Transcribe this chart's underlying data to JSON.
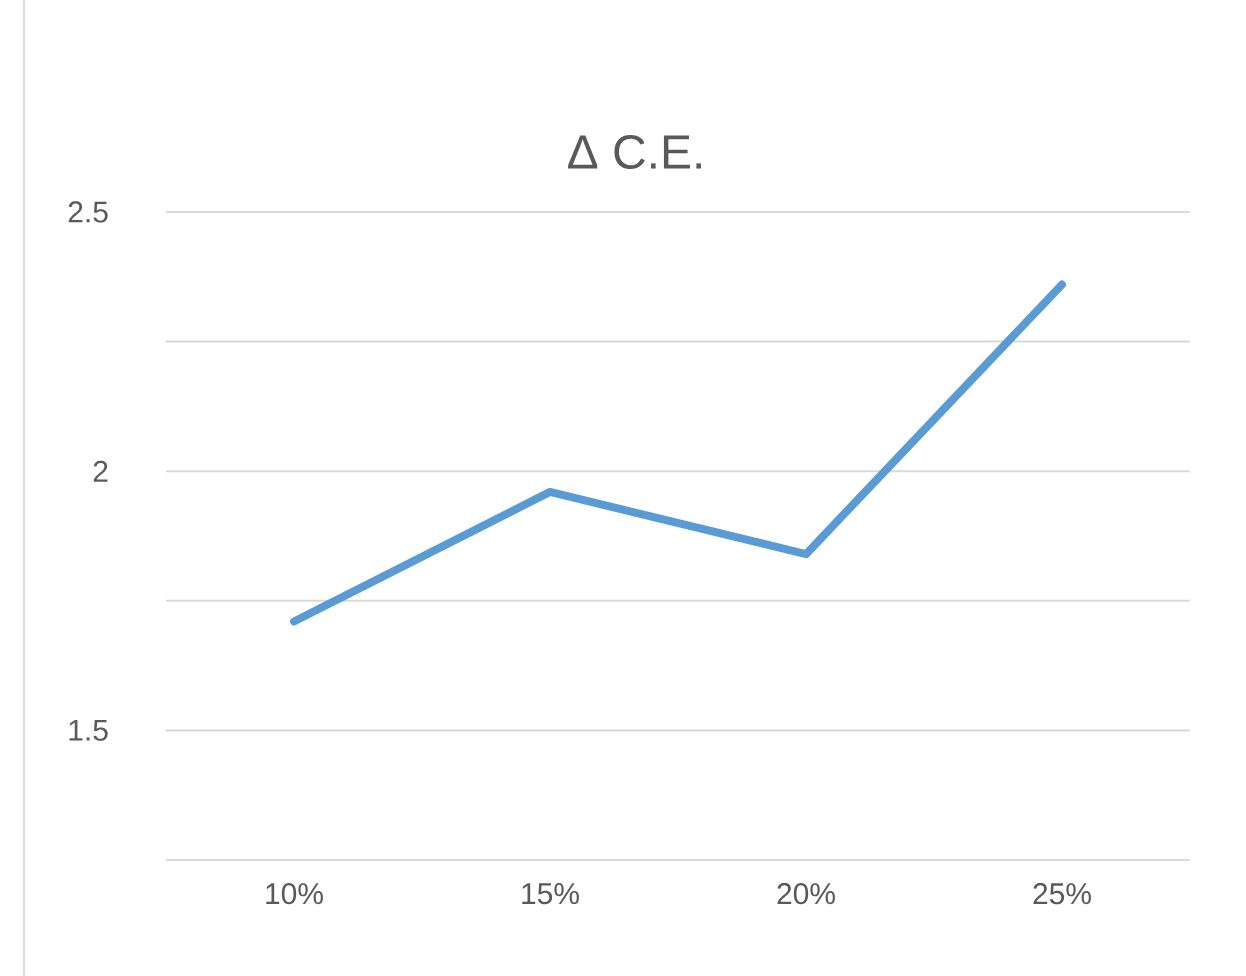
{
  "chart_data": {
    "type": "line",
    "title": "Δ C.E.",
    "categories": [
      "10%",
      "15%",
      "20%",
      "25%"
    ],
    "series": [
      {
        "color": "#5b9bd5",
        "values": [
          1.71,
          1.96,
          1.84,
          2.36
        ]
      }
    ],
    "ylim": [
      1.25,
      2.5
    ],
    "yticks": [
      {
        "value": 1.25,
        "label": null
      },
      1.5,
      {
        "value": 1.75,
        "label": null
      },
      2,
      {
        "value": 2.25,
        "label": null
      },
      2.5
    ],
    "grid": "y",
    "marker": "none",
    "line_style": "solid"
  }
}
